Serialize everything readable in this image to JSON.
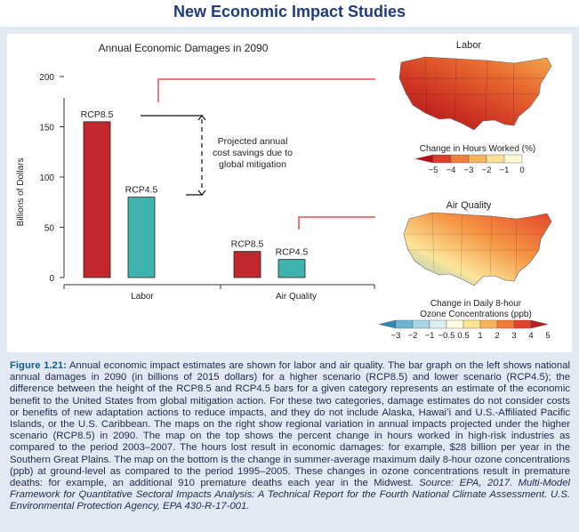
{
  "page_title": "New Economic Impact Studies",
  "chart_data": {
    "type": "bar",
    "title": "Annual Economic Damages in 2090",
    "ylabel": "Billions of Dollars",
    "xlabel": "",
    "ylim": [
      0,
      200
    ],
    "yticks": [
      0,
      50,
      100,
      150,
      200
    ],
    "categories": [
      "Labor",
      "Air Quality"
    ],
    "series": [
      {
        "name": "RCP8.5",
        "color": "#c1272d",
        "values": [
          155,
          26
        ]
      },
      {
        "name": "RCP4.5",
        "color": "#3fb3ad",
        "values": [
          80,
          18
        ]
      }
    ],
    "annotation_lines": [
      "Projected annual",
      "cost savings due to",
      "global mitigation"
    ]
  },
  "labor_map": {
    "title": "Labor",
    "legend_title": "Change in Hours Worked (%)",
    "ticks": [
      "−5",
      "−4",
      "−3",
      "−2",
      "−1",
      "0"
    ],
    "colors": [
      "#b30d1a",
      "#dc3e2a",
      "#ef7e3a",
      "#f7b45b",
      "#fbe09a",
      "#fffbd6"
    ]
  },
  "air_map": {
    "title": "Air Quality",
    "legend_title_1": "Change in Daily 8-hour",
    "legend_title_2": "Ozone Concentrations (ppb)",
    "ticks": [
      "−3",
      "−2",
      "−1",
      "−0.5",
      "0.5",
      "1",
      "2",
      "3",
      "4",
      "5"
    ],
    "colors": [
      "#2e8bb8",
      "#6bb5d2",
      "#a8d6e6",
      "#dcf0f4",
      "#fffbe0",
      "#fde38f",
      "#f9b35b",
      "#f37a37",
      "#e0422a",
      "#b81c22"
    ]
  },
  "caption": {
    "label": "Figure 1.21:",
    "body": "Annual economic impact estimates are shown for labor and air quality. The bar graph on the left shows national annual damages in 2090 (in billions of 2015 dollars) for a higher scenario (RCP8.5) and lower scenario (RCP4.5); the difference between the height of the RCP8.5 and RCP4.5 bars for a given category represents an estimate of the economic benefit to the United States from global mitigation action. For these two categories, damage estimates do not consider costs or benefits of new adaptation actions to reduce impacts, and they do not include Alaska, Hawaiʻi and U.S.-Affiliated Pacific Islands, or the U.S. Caribbean. The maps on the right show regional variation in annual impacts projected under the higher scenario (RCP8.5) in 2090. The map on the top shows the percent change in hours worked in high-risk industries as compared to the period 2003–2007. The hours lost result in economic damages: for example, $28 billion per year in the Southern Great Plains. The map on the bottom is the change in summer-average maximum daily 8-hour ozone concentrations (ppb) at ground-level as compared to the period 1995–2005. These changes in ozone concentrations result in premature deaths: for example, an additional 910 premature deaths each year in the Midwest.",
    "source": "Source: EPA, 2017. Multi-Model Framework for Quantitative Sectoral Impacts Analysis: A Technical Report for the Fourth National Climate Assessment. U.S. Environmental Protection Agency, EPA 430-R-17-001."
  }
}
